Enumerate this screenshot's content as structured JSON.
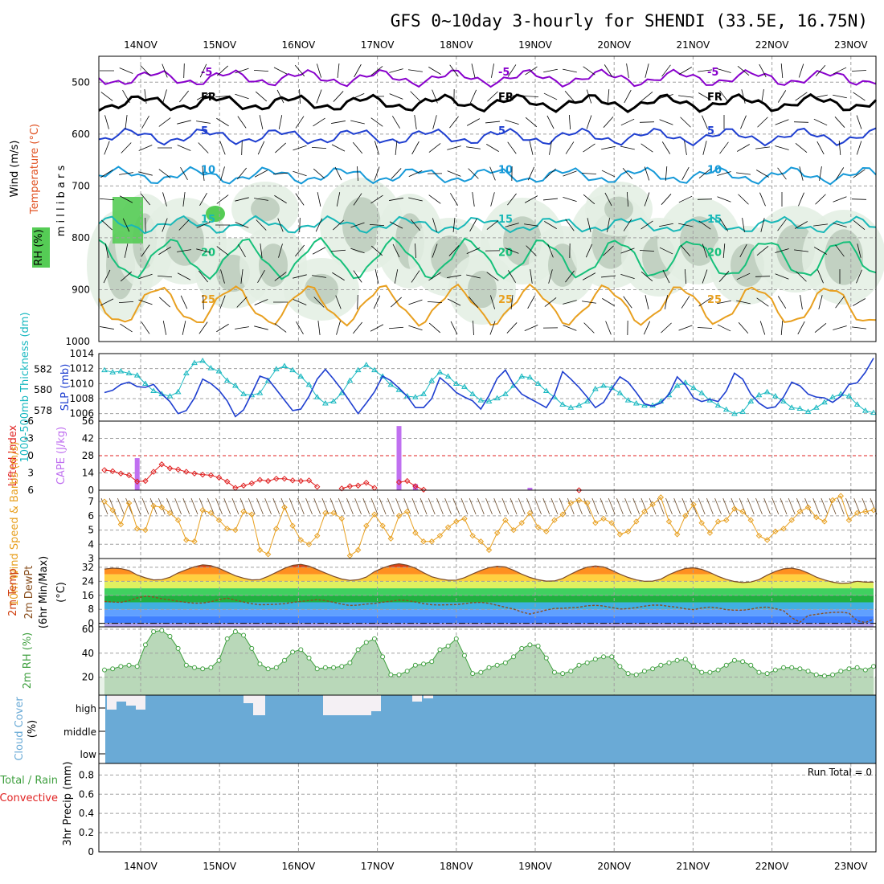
{
  "title": "GFS 0~10day 3-hourly for SHENDI (33.5E, 16.75N)",
  "date_labels": [
    "14NOV",
    "15NOV",
    "16NOV",
    "17NOV",
    "18NOV",
    "19NOV",
    "20NOV",
    "21NOV",
    "22NOV",
    "23NOV"
  ],
  "chart_data": [
    {
      "id": "upper_air",
      "type": "line",
      "ylabel_parts": [
        "Wind (m/s)",
        "Temperature (°C)",
        "m i l l i b a r s",
        "RH (%)"
      ],
      "y_ticks": [
        500,
        600,
        700,
        800,
        900,
        1000
      ],
      "ylim": [
        450,
        1000
      ],
      "isotherms": [
        {
          "label": "-5",
          "color": "#8800cc",
          "level_hpa": 492
        },
        {
          "label": "FR",
          "color": "#000000",
          "level_hpa": 540
        },
        {
          "label": "5",
          "color": "#1f3fd0",
          "level_hpa": 605
        },
        {
          "label": "10",
          "color": "#1599d8",
          "level_hpa": 680
        },
        {
          "label": "15",
          "color": "#18b8b8",
          "level_hpa": 775
        },
        {
          "label": "20",
          "color": "#16c07a",
          "level_hpa": 840
        },
        {
          "label": "25",
          "color": "#e8a020",
          "level_hpa": 930
        }
      ]
    },
    {
      "id": "slp_thickness",
      "type": "line",
      "ylabel_left": "1000-500mb Thickness (dm)",
      "ylabel_right": "SLP (mb)",
      "left_ticks": [
        578,
        580,
        582
      ],
      "right_ticks": [
        1006,
        1008,
        1010,
        1012,
        1014
      ],
      "series": [
        {
          "name": "SLP (mb)",
          "color": "#1f3fd0",
          "values": [
            1008.8,
            1009.1,
            1009.9,
            1010.2,
            1009.6,
            1009.5,
            1009.9,
            1008.6,
            1007.6,
            1006.0,
            1006.4,
            1008.1,
            1010.6,
            1010.0,
            1009.1,
            1007.7,
            1005.6,
            1006.5,
            1008.7,
            1011.0,
            1010.6,
            1009.2,
            1007.8,
            1006.4,
            1006.6,
            1008.3,
            1010.6,
            1011.9,
            1010.6,
            1009.2,
            1007.6,
            1006.0,
            1007.4,
            1008.9,
            1011.0,
            1010.4,
            1009.4,
            1008.3,
            1006.8,
            1006.8,
            1008.0,
            1010.8,
            1009.9,
            1008.8,
            1008.2,
            1007.7,
            1006.6,
            1008.4,
            1010.7,
            1011.8,
            1009.9,
            1008.6,
            1008.0,
            1007.4,
            1006.8,
            1008.5,
            1011.6,
            1010.6,
            1009.5,
            1008.2,
            1006.8,
            1007.5,
            1009.3,
            1010.9,
            1010.2,
            1008.8,
            1007.3,
            1007.0,
            1007.4,
            1008.6,
            1010.9,
            1009.8,
            1008.1,
            1007.6,
            1007.9,
            1007.6,
            1009.0,
            1011.4,
            1010.6,
            1008.6,
            1007.4,
            1006.7,
            1006.9,
            1008.2,
            1010.2,
            1009.7,
            1008.6,
            1008.2,
            1008.1,
            1007.5,
            1008.3,
            1009.9,
            1010.1,
            1011.5,
            1013.4
          ]
        },
        {
          "name": "1000-500mb Thickness (dm)",
          "color": "#18b8c0",
          "values": [
            581.9,
            581.7,
            581.8,
            581.6,
            581.4,
            580.6,
            579.9,
            579.6,
            579.4,
            579.8,
            581.6,
            582.6,
            582.8,
            582.1,
            581.8,
            580.9,
            580.4,
            579.6,
            579.5,
            579.7,
            580.9,
            582.0,
            582.3,
            581.9,
            581.3,
            580.5,
            579.3,
            578.7,
            578.9,
            579.7,
            580.9,
            581.9,
            582.4,
            581.9,
            581.3,
            580.5,
            580.0,
            579.4,
            579.3,
            579.6,
            580.9,
            581.7,
            581.3,
            580.6,
            580.3,
            579.6,
            579.0,
            578.9,
            579.2,
            579.6,
            580.4,
            581.3,
            581.2,
            580.6,
            579.9,
            579.3,
            578.6,
            578.3,
            578.5,
            578.9,
            580.1,
            580.4,
            580.2,
            579.7,
            579.0,
            578.7,
            578.5,
            578.5,
            578.9,
            579.5,
            580.4,
            580.7,
            580.2,
            579.7,
            579.0,
            578.5,
            578.1,
            577.7,
            577.9,
            578.9,
            579.5,
            579.8,
            579.4,
            578.9,
            578.3,
            578.2,
            577.9,
            578.3,
            578.8,
            579.3,
            579.6,
            579.4,
            578.6,
            578.0,
            577.8
          ]
        }
      ]
    },
    {
      "id": "lifted_cape",
      "type": "bar",
      "ylabel_left": "Lifted Index",
      "ylabel_right": "CAPE (J/kg)",
      "left_ticks": [
        "-6",
        "-3",
        "0",
        "3",
        "6"
      ],
      "right_ticks": [
        56,
        42,
        28,
        14,
        0
      ],
      "lifted_index_color": "#e02020",
      "cape_color": "#c070f0",
      "lifted_index": [
        2.5,
        2.7,
        3.1,
        3.4,
        4.5,
        4.4,
        2.8,
        1.5,
        2.2,
        2.4,
        2.8,
        3.1,
        3.3,
        3.4,
        3.8,
        4.5,
        5.6,
        5.2,
        4.8,
        4.2,
        4.4,
        4.0,
        4.0,
        4.3,
        4.4,
        4.3,
        5.4,
        6.3,
        6.7,
        5.7,
        5.3,
        5.2,
        4.7,
        5.6,
        7.4,
        6.6,
        4.6,
        4.4,
        5.3,
        5.9,
        6.1,
        6.8,
        7.0,
        7.3,
        8.0,
        7.6,
        8.2,
        8.2,
        7.4,
        7.6,
        7.4,
        7.7,
        7.8,
        7.8,
        7.9,
        8.3,
        7.5,
        6.6,
        6.0,
        6.3,
        6.5,
        6.9,
        7.2,
        7.3,
        7.3,
        7.5,
        7.4,
        7.5,
        7.8,
        8.2,
        8.3,
        8.2,
        7.7,
        7.1,
        6.1,
        6.3,
        6.7,
        7.0,
        7.2,
        7.6,
        7.8,
        7.7,
        8.4,
        8.2,
        8.3,
        8.2,
        8.2,
        8.6,
        8.0,
        7.9,
        7.8,
        8.1,
        8.2,
        8.1,
        8.2
      ],
      "cape": [
        0,
        0,
        0,
        0,
        26,
        0,
        0,
        0,
        0,
        0,
        0,
        0,
        0,
        0,
        0,
        0,
        0,
        0,
        0,
        0,
        0,
        0,
        0,
        0,
        0,
        0,
        0,
        0,
        0,
        0,
        0,
        0,
        0,
        0,
        0,
        0,
        52,
        0,
        5,
        0,
        0,
        0,
        0,
        0,
        0,
        0,
        0,
        0,
        0,
        0,
        0,
        0,
        2,
        0,
        0,
        0,
        0,
        0,
        0,
        0,
        0,
        0,
        0,
        0,
        0,
        0,
        0,
        0,
        0,
        0,
        0,
        0,
        0,
        0,
        0,
        0,
        0,
        0,
        0,
        0,
        0,
        0,
        0,
        0,
        0,
        0,
        0,
        0,
        0,
        0,
        0,
        0,
        0,
        0,
        0
      ]
    },
    {
      "id": "wind10m",
      "type": "line",
      "ylabel": "10m Wind Speed & Barbs (m/s)",
      "y_ticks": [
        3,
        4,
        5,
        6,
        7
      ],
      "color": "#e8a020",
      "values": [
        7.0,
        6.4,
        5.4,
        6.9,
        5.1,
        5.0,
        6.7,
        6.6,
        6.2,
        5.7,
        4.3,
        4.2,
        6.4,
        6.2,
        5.7,
        5.1,
        5.0,
        6.3,
        6.1,
        3.6,
        3.3,
        5.1,
        6.6,
        5.3,
        4.3,
        4.0,
        4.6,
        6.2,
        6.2,
        5.8,
        3.2,
        3.6,
        5.3,
        6.1,
        5.3,
        4.4,
        6.0,
        6.3,
        4.8,
        4.2,
        4.2,
        4.6,
        5.2,
        5.6,
        5.8,
        4.6,
        4.2,
        3.6,
        4.8,
        5.7,
        5.0,
        5.5,
        6.2,
        5.2,
        4.9,
        5.7,
        6.1,
        6.9,
        7.1,
        6.9,
        5.5,
        5.8,
        5.5,
        4.7,
        4.9,
        5.6,
        6.3,
        6.8,
        7.3,
        5.6,
        4.7,
        6.0,
        6.8,
        5.5,
        4.8,
        5.6,
        5.7,
        6.5,
        6.3,
        5.7,
        4.6,
        4.3,
        4.9,
        5.1,
        5.7,
        6.3,
        6.6,
        5.9,
        5.6,
        7.1,
        7.4,
        5.7,
        6.2,
        6.3,
        6.4
      ]
    },
    {
      "id": "temp2m",
      "type": "area",
      "ylabel": "2m Temp 2m DewPt (6hr Min/Max) (°C)",
      "y_ticks": [
        0,
        8,
        16,
        24,
        32
      ],
      "temp_color": "#d04010",
      "dewpt_color": "#8a5020",
      "temperature": [
        31.0,
        31.5,
        31.2,
        30.2,
        27.6,
        26.0,
        24.8,
        25.0,
        26.3,
        28.8,
        30.6,
        32.3,
        33.4,
        32.9,
        31.4,
        29.3,
        27.2,
        25.8,
        24.8,
        25.0,
        26.8,
        29.1,
        31.4,
        33.1,
        33.7,
        32.7,
        30.7,
        28.7,
        26.8,
        25.3,
        24.5,
        24.9,
        26.4,
        29.5,
        31.6,
        33.2,
        34.0,
        33.2,
        31.5,
        28.9,
        26.6,
        25.4,
        24.6,
        24.7,
        26.1,
        28.2,
        30.2,
        31.8,
        32.6,
        32.2,
        30.3,
        28.1,
        26.2,
        24.9,
        24.1,
        24.2,
        25.6,
        28.1,
        30.4,
        32.1,
        32.8,
        32.2,
        30.3,
        28.1,
        26.2,
        24.8,
        24.0,
        24.1,
        25.2,
        27.8,
        29.8,
        31.3,
        31.7,
        30.8,
        29.0,
        26.8,
        25.1,
        23.9,
        23.3,
        23.6,
        25.0,
        27.5,
        29.6,
        31.1,
        31.5,
        30.6,
        28.7,
        26.4,
        24.8,
        23.5,
        22.8,
        23.0,
        24.0,
        23.5,
        23.5
      ],
      "dewpoint": [
        12.5,
        12.2,
        12.0,
        13.0,
        14.5,
        15.5,
        15.0,
        14.0,
        13.4,
        12.6,
        12.0,
        11.5,
        11.6,
        12.3,
        13.5,
        14.4,
        13.3,
        12.2,
        11.2,
        10.6,
        10.7,
        10.9,
        11.2,
        12.0,
        12.5,
        13.0,
        13.5,
        13.0,
        12.0,
        11.0,
        10.2,
        10.4,
        11.0,
        11.4,
        12.1,
        12.6,
        13.3,
        13.0,
        12.2,
        11.3,
        10.6,
        10.5,
        10.6,
        10.7,
        11.2,
        11.8,
        12.0,
        11.4,
        10.3,
        9.2,
        8.2,
        6.5,
        5.3,
        6.4,
        7.6,
        8.5,
        8.6,
        8.9,
        9.2,
        10.0,
        10.3,
        9.9,
        9.0,
        8.2,
        8.4,
        9.0,
        9.8,
        10.4,
        10.4,
        9.7,
        9.2,
        8.3,
        7.8,
        8.8,
        9.3,
        8.8,
        7.8,
        7.5,
        7.5,
        8.1,
        9.0,
        9.3,
        8.4,
        7.2,
        3.2,
        0.6,
        4.5,
        5.1,
        5.8,
        6.2,
        6.4,
        5.8,
        1.5,
        0.5,
        2.3
      ]
    },
    {
      "id": "rh2m",
      "type": "area",
      "ylabel": "2m RH (%)",
      "y_ticks": [
        20,
        40,
        60
      ],
      "color": "#40a040",
      "values": [
        26,
        27,
        29,
        30,
        29,
        47,
        58,
        59,
        54,
        44,
        30,
        28,
        27,
        28,
        34,
        52,
        58,
        55,
        44,
        31,
        27,
        28,
        34,
        41,
        43,
        36,
        27,
        28,
        28,
        29,
        32,
        43,
        49,
        52,
        37,
        22,
        22,
        25,
        30,
        31,
        33,
        43,
        46,
        52,
        38,
        23,
        24,
        28,
        30,
        32,
        37,
        44,
        47,
        46,
        36,
        24,
        23,
        25,
        30,
        32,
        35,
        37,
        37,
        29,
        23,
        22,
        25,
        27,
        30,
        32,
        34,
        35,
        29,
        24,
        24,
        26,
        30,
        34,
        33,
        30,
        24,
        23,
        26,
        28,
        28,
        27,
        25,
        22,
        21,
        22,
        25,
        27,
        28,
        26,
        29
      ]
    },
    {
      "id": "cloud_cover",
      "type": "heatmap",
      "ylabel": "Cloud Cover (%)",
      "levels": [
        "high",
        "middle",
        "low"
      ]
    },
    {
      "id": "precip",
      "type": "bar",
      "ylabel_left": "Total / Rain",
      "ylabel_left2": "Convective",
      "ylabel_right": "3hr Precip (mm)",
      "y_ticks": [
        "0",
        "0.2",
        "0.4",
        "0.6",
        "0.8"
      ],
      "run_total": "Run Total = 0"
    }
  ]
}
